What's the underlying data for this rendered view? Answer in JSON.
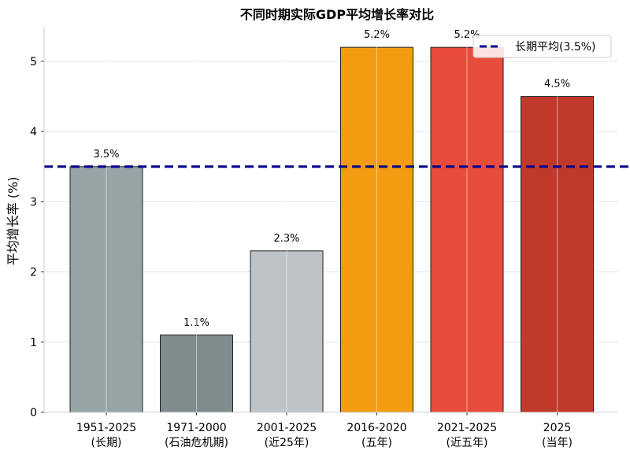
{
  "chart_data": {
    "type": "bar",
    "title": "不同时期实际GDP平均增长率对比",
    "xlabel": "",
    "ylabel": "平均增长率 (%)",
    "ylim": [
      0,
      5.5
    ],
    "yticks": [
      "0",
      "1",
      "2",
      "3",
      "4",
      "5"
    ],
    "grid": true,
    "categories": [
      [
        "1951-2025",
        "(长期)"
      ],
      [
        "1971-2000",
        "(石油危机期)"
      ],
      [
        "2001-2025",
        "(近25年)"
      ],
      [
        "2016-2020",
        "(五年)"
      ],
      [
        "2021-2025",
        "(近五年)"
      ],
      [
        "2025",
        "(当年)"
      ]
    ],
    "values": [
      3.5,
      1.1,
      2.3,
      5.2,
      5.2,
      4.5
    ],
    "data_labels": [
      "3.5%",
      "1.1%",
      "2.3%",
      "5.2%",
      "5.2%",
      "4.5%"
    ],
    "colors": [
      "#95a5a6",
      "#7f8c8d",
      "#bdc3c7",
      "#f39c12",
      "#e74c3c",
      "#c0392b"
    ],
    "reference_line": {
      "value": 3.5,
      "label": "长期平均(3.5%)",
      "color": "#00008b",
      "style": "dashed"
    },
    "legend_placement": "top-right"
  }
}
